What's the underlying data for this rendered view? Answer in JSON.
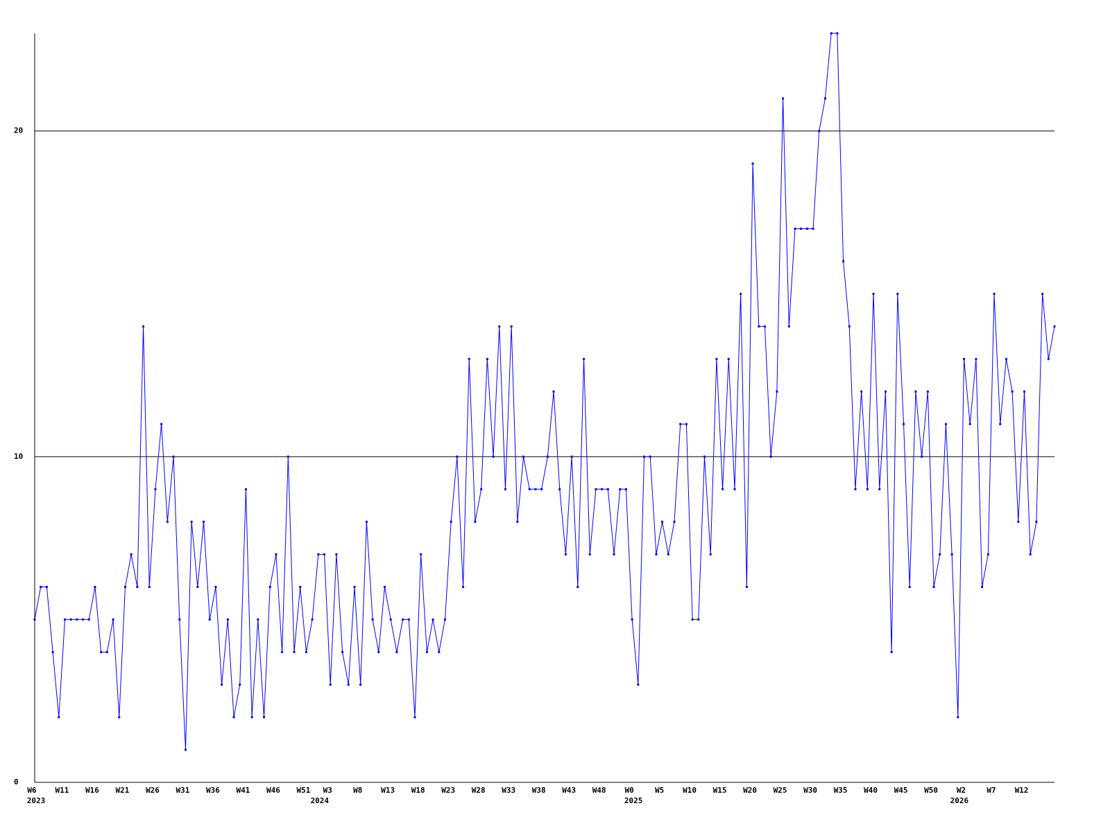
{
  "chart_data": {
    "type": "line",
    "color": "#0000ff",
    "categories": [
      "W6",
      null,
      null,
      null,
      null,
      "W11",
      null,
      null,
      null,
      null,
      "W16",
      null,
      null,
      null,
      null,
      "W21",
      null,
      null,
      null,
      null,
      "W26",
      null,
      null,
      null,
      null,
      "W31",
      null,
      null,
      null,
      null,
      "W36",
      null,
      null,
      null,
      null,
      "W41",
      null,
      null,
      null,
      null,
      "W46",
      null,
      null,
      null,
      null,
      "W51",
      null,
      null,
      null,
      "W3",
      null,
      null,
      null,
      null,
      "W8",
      null,
      null,
      null,
      null,
      "W13",
      null,
      null,
      null,
      null,
      "W18",
      null,
      null,
      null,
      null,
      "W23",
      null,
      null,
      null,
      null,
      "W28",
      null,
      null,
      null,
      null,
      "W33",
      null,
      null,
      null,
      null,
      "W38",
      null,
      null,
      null,
      null,
      "W43",
      null,
      null,
      null,
      null,
      "W48",
      null,
      null,
      null,
      null,
      "W0",
      null,
      null,
      null,
      null,
      "W5",
      null,
      null,
      null,
      null,
      "W10",
      null,
      null,
      null,
      null,
      "W15",
      null,
      null,
      null,
      null,
      "W20",
      null,
      null,
      null,
      null,
      "W25",
      null,
      null,
      null,
      null,
      "W30",
      null,
      null,
      null,
      null,
      "W35",
      null,
      null,
      null,
      null,
      "W40",
      null,
      null,
      null,
      null,
      "W45",
      null,
      null,
      null,
      null,
      "W50",
      null,
      null,
      null,
      null,
      "W2",
      null,
      null,
      null,
      null,
      "W7",
      null,
      null,
      null,
      null,
      "W12",
      null,
      null,
      null,
      null,
      null
    ],
    "values": [
      5,
      6,
      6,
      4,
      2,
      5,
      5,
      5,
      5,
      5,
      6,
      4,
      4,
      5,
      2,
      6,
      7,
      6,
      14,
      6,
      9,
      11,
      8,
      10,
      5,
      1,
      8,
      6,
      8,
      5,
      6,
      3,
      5,
      2,
      3,
      9,
      2,
      5,
      2,
      6,
      7,
      4,
      10,
      4,
      6,
      4,
      5,
      7,
      7,
      3,
      7,
      4,
      3,
      6,
      3,
      8,
      5,
      4,
      6,
      5,
      4,
      5,
      5,
      2,
      7,
      4,
      5,
      4,
      5,
      8,
      10,
      6,
      13,
      8,
      9,
      13,
      10,
      14,
      9,
      14,
      8,
      10,
      9,
      9,
      9,
      10,
      12,
      9,
      7,
      10,
      6,
      13,
      7,
      9,
      9,
      9,
      7,
      9,
      9,
      5,
      3,
      10,
      10,
      7,
      8,
      7,
      8,
      11,
      11,
      5,
      5,
      10,
      7,
      13,
      9,
      13,
      9,
      15,
      6,
      19,
      14,
      14,
      10,
      12,
      21,
      14,
      17,
      17,
      17,
      17,
      20,
      21,
      23,
      23,
      16,
      14,
      9,
      12,
      9,
      15,
      9,
      12,
      4,
      15,
      11,
      6,
      12,
      10,
      12,
      6,
      7,
      11,
      7,
      2,
      13,
      11,
      13,
      6,
      7,
      15,
      11,
      13,
      12,
      8,
      12,
      7,
      8,
      15,
      13,
      14
    ],
    "x_year_labels": [
      {
        "value": 0,
        "label": "2023"
      },
      {
        "value": 47,
        "label": "2024"
      },
      {
        "value": 99,
        "label": "2025"
      },
      {
        "value": 153,
        "label": "2026"
      }
    ],
    "ylim": [
      0,
      23
    ],
    "yticks": [
      0,
      10,
      20
    ],
    "grid": true
  }
}
